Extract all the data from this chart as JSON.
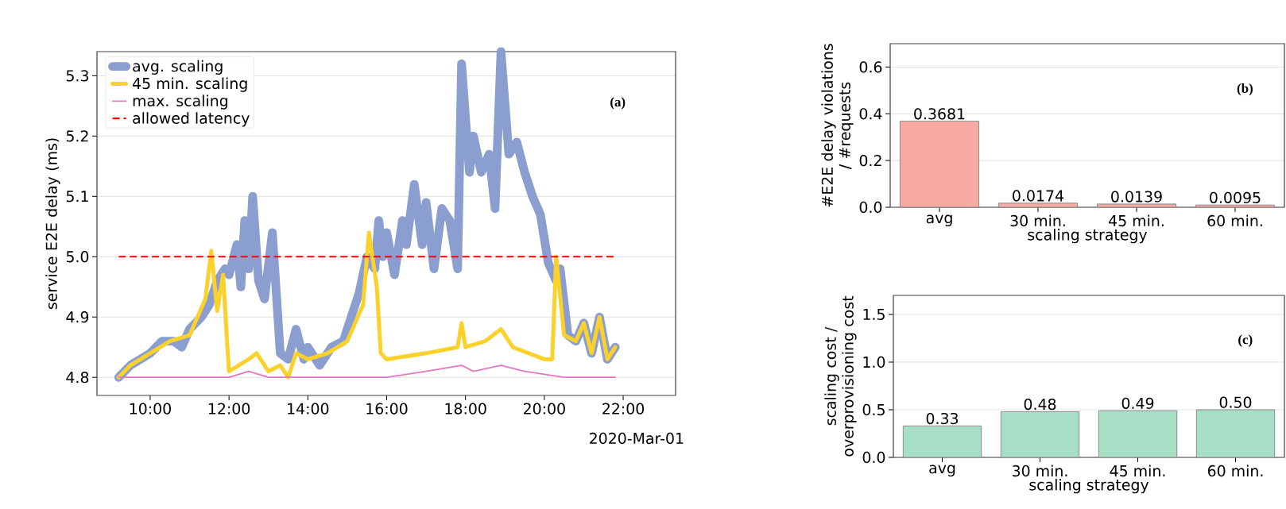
{
  "chart_data": [
    {
      "type": "line",
      "ylabel": "service E2E delay (ms)",
      "xlim": [
        8.65,
        23.33
      ],
      "ylim": [
        4.77,
        5.34
      ],
      "xticks": [
        {
          "value": 10,
          "label": "10:00"
        },
        {
          "value": 12,
          "label": "12:00"
        },
        {
          "value": 14,
          "label": "14:00"
        },
        {
          "value": 16,
          "label": "16:00"
        },
        {
          "value": 18,
          "label": "18:00"
        },
        {
          "value": 20,
          "label": "20:00"
        },
        {
          "value": 22,
          "label": "22:00"
        }
      ],
      "yticks": [
        {
          "value": 4.8,
          "label": "4.8"
        },
        {
          "value": 4.9,
          "label": "4.9"
        },
        {
          "value": 5.0,
          "label": "5.0"
        },
        {
          "value": 5.1,
          "label": "5.1"
        },
        {
          "value": 5.2,
          "label": "5.2"
        },
        {
          "value": 5.3,
          "label": "5.3"
        }
      ],
      "grid": "y",
      "legend": "top left",
      "series": [
        {
          "name": "avg. scaling",
          "color": "#8a9fd0",
          "x": [
            9.2,
            9.5,
            10,
            10.3,
            10.6,
            10.8,
            11,
            11.3,
            11.5,
            11.7,
            11.9,
            12.0,
            12.2,
            12.3,
            12.4,
            12.5,
            12.6,
            12.75,
            12.9,
            13.1,
            13.3,
            13.5,
            13.7,
            13.9,
            14,
            14.3,
            14.6,
            14.9,
            15.1,
            15.3,
            15.5,
            15.7,
            15.8,
            15.9,
            16.0,
            16.2,
            16.4,
            16.5,
            16.7,
            16.9,
            17.0,
            17.2,
            17.4,
            17.6,
            17.8,
            17.9,
            18.1,
            18.2,
            18.4,
            18.6,
            18.75,
            18.9,
            19.1,
            19.3,
            19.5,
            19.7,
            19.9,
            20.1,
            20.3,
            20.4,
            20.6,
            20.8,
            21.0,
            21.2,
            21.4,
            21.6,
            21.8
          ],
          "values": [
            4.8,
            4.82,
            4.84,
            4.86,
            4.86,
            4.85,
            4.88,
            4.9,
            4.92,
            4.96,
            4.98,
            4.97,
            5.02,
            4.95,
            5.06,
            4.98,
            5.1,
            4.96,
            4.93,
            5.04,
            4.84,
            4.83,
            4.88,
            4.83,
            4.85,
            4.82,
            4.85,
            4.86,
            4.9,
            4.94,
            5.0,
            4.98,
            5.06,
            5.0,
            5.04,
            4.97,
            5.06,
            5.02,
            5.12,
            5.02,
            5.09,
            4.98,
            5.08,
            5.06,
            4.98,
            5.32,
            5.14,
            5.2,
            5.14,
            5.17,
            5.08,
            5.34,
            5.17,
            5.19,
            5.14,
            5.1,
            5.07,
            4.99,
            4.96,
            4.98,
            4.87,
            4.86,
            4.89,
            4.84,
            4.9,
            4.83,
            4.85
          ]
        },
        {
          "name": "45 min. scaling",
          "color": "#fcd12a",
          "x": [
            9.2,
            9.5,
            10,
            10.5,
            11,
            11.4,
            11.55,
            11.7,
            11.85,
            11.95,
            12.0,
            12.5,
            12.7,
            13,
            13.3,
            13.5,
            13.7,
            14,
            14.5,
            15,
            15.4,
            15.55,
            15.75,
            15.85,
            16,
            17,
            17.8,
            17.9,
            18,
            18.5,
            18.9,
            19.2,
            20,
            20.2,
            20.3,
            20.5,
            20.8,
            21.0,
            21.2,
            21.4,
            21.6,
            21.8
          ],
          "values": [
            4.8,
            4.82,
            4.84,
            4.86,
            4.87,
            4.93,
            5.01,
            4.91,
            4.97,
            4.86,
            4.81,
            4.83,
            4.84,
            4.81,
            4.82,
            4.8,
            4.84,
            4.83,
            4.84,
            4.86,
            4.92,
            5.04,
            4.95,
            4.84,
            4.83,
            4.84,
            4.85,
            4.89,
            4.85,
            4.86,
            4.88,
            4.85,
            4.83,
            4.83,
            5.0,
            4.87,
            4.86,
            4.89,
            4.84,
            4.9,
            4.83,
            4.85
          ]
        },
        {
          "name": "max. scaling",
          "color": "#e377c2",
          "x": [
            9.2,
            12,
            12.5,
            13,
            15,
            16,
            17,
            17.9,
            18.2,
            18.9,
            19.5,
            20.5,
            21.8
          ],
          "values": [
            4.8,
            4.8,
            4.81,
            4.8,
            4.8,
            4.8,
            4.81,
            4.82,
            4.81,
            4.82,
            4.81,
            4.8,
            4.8
          ]
        }
      ],
      "ref_lines": [
        {
          "axis": "y",
          "value": 5.0,
          "label": "allowed latency",
          "color": "#ff0000",
          "line_style": "dashed"
        }
      ],
      "annotations": [
        "(a)",
        "2020-Mar-01"
      ]
    },
    {
      "type": "bar",
      "ylabel": "#E2E delay violations / #requests",
      "xlabel": "scaling strategy",
      "categories": [
        "avg",
        "30 min.",
        "45 min.",
        "60 min."
      ],
      "values": [
        0.3681,
        0.0174,
        0.0139,
        0.0095
      ],
      "color": "#f8aaa2",
      "ylim": [
        0,
        0.7
      ],
      "yticks": [
        {
          "value": 0,
          "label": "0.0"
        },
        {
          "value": 0.2,
          "label": "0.2"
        },
        {
          "value": 0.4,
          "label": "0.4"
        },
        {
          "value": 0.6,
          "label": "0.6"
        }
      ],
      "grid": "y",
      "value_labels": [
        "0.3681",
        "0.0174",
        "0.0139",
        "0.0095"
      ],
      "annotations": [
        "(b)"
      ]
    },
    {
      "type": "bar",
      "ylabel": "scaling cost / overprovisioning cost",
      "xlabel": "scaling strategy",
      "categories": [
        "avg",
        "30 min.",
        "45 min.",
        "60 min."
      ],
      "values": [
        0.33,
        0.48,
        0.49,
        0.5
      ],
      "color": "#a7dfc6",
      "ylim": [
        0,
        1.7
      ],
      "yticks": [
        {
          "value": 0,
          "label": "0.0"
        },
        {
          "value": 0.5,
          "label": "0.5"
        },
        {
          "value": 1.0,
          "label": "1.0"
        },
        {
          "value": 1.5,
          "label": "1.5"
        }
      ],
      "grid": "y",
      "value_labels": [
        "0.33",
        "0.48",
        "0.49",
        "0.50"
      ],
      "annotations": [
        "(c)"
      ]
    }
  ]
}
